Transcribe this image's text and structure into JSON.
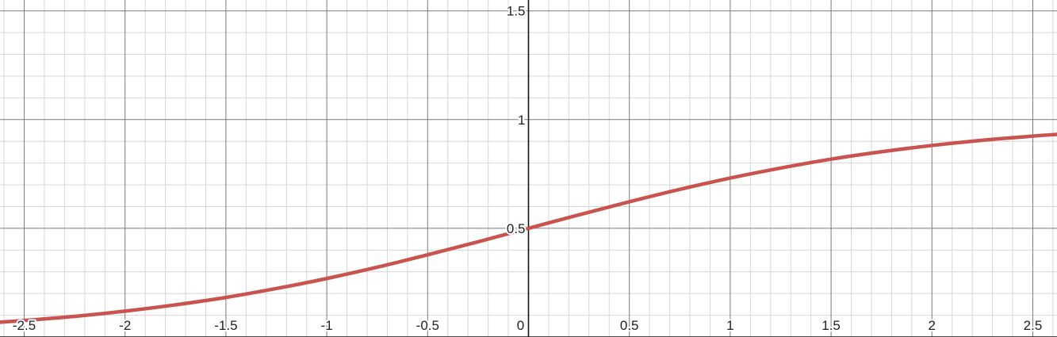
{
  "chart_data": {
    "type": "line",
    "title": "",
    "xlabel": "",
    "ylabel": "",
    "xlim": [
      -2.62,
      2.62
    ],
    "ylim": [
      0.0,
      1.55
    ],
    "grid": true,
    "x_ticks": [
      {
        "value": -2.5,
        "label": "-2.5"
      },
      {
        "value": -2.0,
        "label": "-2"
      },
      {
        "value": -1.5,
        "label": "-1.5"
      },
      {
        "value": -1.0,
        "label": "-1"
      },
      {
        "value": -0.5,
        "label": "-0.5"
      },
      {
        "value": 0.0,
        "label": "0"
      },
      {
        "value": 0.5,
        "label": "0.5"
      },
      {
        "value": 1.0,
        "label": "1"
      },
      {
        "value": 1.5,
        "label": "1.5"
      },
      {
        "value": 2.0,
        "label": "2"
      },
      {
        "value": 2.5,
        "label": "2.5"
      }
    ],
    "y_ticks": [
      {
        "value": 0.5,
        "label": "0.5"
      },
      {
        "value": 1.0,
        "label": "1"
      },
      {
        "value": 1.5,
        "label": "1.5"
      }
    ],
    "series": [
      {
        "color": "#c9534e",
        "x": [
          -2.62,
          -2.5,
          -2.25,
          -2.0,
          -1.75,
          -1.5,
          -1.25,
          -1.0,
          -0.75,
          -0.5,
          -0.25,
          0.0,
          0.25,
          0.5,
          0.75,
          1.0,
          1.25,
          1.5,
          1.75,
          2.0,
          2.25,
          2.5,
          2.62
        ],
        "y": [
          0.068,
          0.076,
          0.095,
          0.119,
          0.148,
          0.182,
          0.223,
          0.269,
          0.321,
          0.378,
          0.438,
          0.5,
          0.562,
          0.622,
          0.679,
          0.731,
          0.777,
          0.818,
          0.852,
          0.881,
          0.905,
          0.924,
          0.932
        ]
      }
    ]
  }
}
